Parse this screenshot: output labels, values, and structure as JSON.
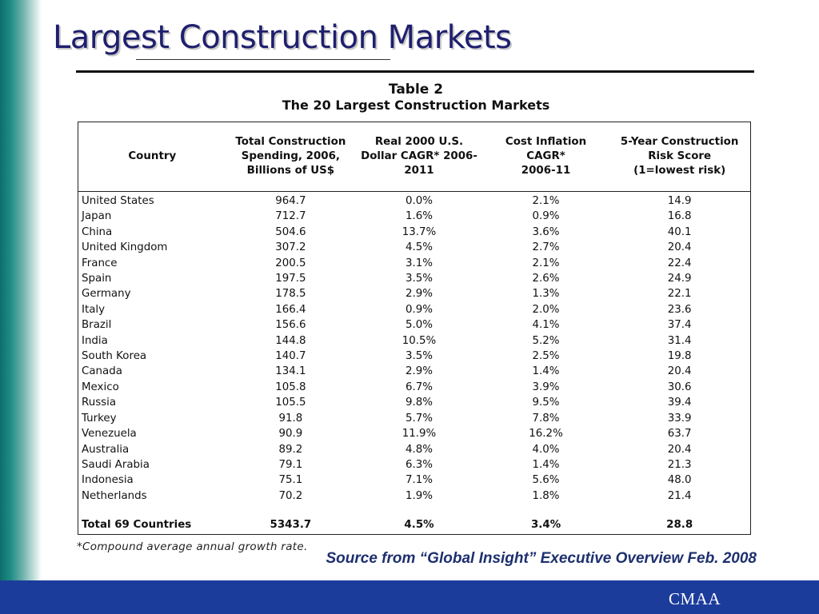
{
  "slide": {
    "title": "Largest Construction Markets"
  },
  "table": {
    "caption_line1": "Table 2",
    "caption_line2": "The 20 Largest Construction Markets",
    "headers": {
      "country": "Country",
      "spending": [
        "Total Construction",
        "Spending, 2006,",
        "Billions of US$"
      ],
      "cagr": [
        "Real 2000 U.S.",
        "Dollar CAGR* 2006-",
        "2011"
      ],
      "inflation": [
        "Cost Inflation",
        "CAGR*",
        "2006-11"
      ],
      "risk": [
        "5-Year Construction",
        "Risk Score",
        "(1=lowest risk)"
      ]
    },
    "rows": [
      {
        "country": "United States",
        "spending": "964.7",
        "cagr": "0.0%",
        "inflation": "2.1%",
        "risk": "14.9"
      },
      {
        "country": "Japan",
        "spending": "712.7",
        "cagr": "1.6%",
        "inflation": "0.9%",
        "risk": "16.8"
      },
      {
        "country": "China",
        "spending": "504.6",
        "cagr": "13.7%",
        "inflation": "3.6%",
        "risk": "40.1"
      },
      {
        "country": "United Kingdom",
        "spending": "307.2",
        "cagr": "4.5%",
        "inflation": "2.7%",
        "risk": "20.4"
      },
      {
        "country": "France",
        "spending": "200.5",
        "cagr": "3.1%",
        "inflation": "2.1%",
        "risk": "22.4"
      },
      {
        "country": "Spain",
        "spending": "197.5",
        "cagr": "3.5%",
        "inflation": "2.6%",
        "risk": "24.9"
      },
      {
        "country": "Germany",
        "spending": "178.5",
        "cagr": "2.9%",
        "inflation": "1.3%",
        "risk": "22.1"
      },
      {
        "country": "Italy",
        "spending": "166.4",
        "cagr": "0.9%",
        "inflation": "2.0%",
        "risk": "23.6"
      },
      {
        "country": "Brazil",
        "spending": "156.6",
        "cagr": "5.0%",
        "inflation": "4.1%",
        "risk": "37.4"
      },
      {
        "country": "India",
        "spending": "144.8",
        "cagr": "10.5%",
        "inflation": "5.2%",
        "risk": "31.4"
      },
      {
        "country": "South Korea",
        "spending": "140.7",
        "cagr": "3.5%",
        "inflation": "2.5%",
        "risk": "19.8"
      },
      {
        "country": "Canada",
        "spending": "134.1",
        "cagr": "2.9%",
        "inflation": "1.4%",
        "risk": "20.4"
      },
      {
        "country": "Mexico",
        "spending": "105.8",
        "cagr": "6.7%",
        "inflation": "3.9%",
        "risk": "30.6"
      },
      {
        "country": "Russia",
        "spending": "105.5",
        "cagr": "9.8%",
        "inflation": "9.5%",
        "risk": "39.4"
      },
      {
        "country": "Turkey",
        "spending": "91.8",
        "cagr": "5.7%",
        "inflation": "7.8%",
        "risk": "33.9"
      },
      {
        "country": "Venezuela",
        "spending": "90.9",
        "cagr": "11.9%",
        "inflation": "16.2%",
        "risk": "63.7"
      },
      {
        "country": "Australia",
        "spending": "89.2",
        "cagr": "4.8%",
        "inflation": "4.0%",
        "risk": "20.4"
      },
      {
        "country": "Saudi Arabia",
        "spending": "79.1",
        "cagr": "6.3%",
        "inflation": "1.4%",
        "risk": "21.3"
      },
      {
        "country": "Indonesia",
        "spending": "75.1",
        "cagr": "7.1%",
        "inflation": "5.6%",
        "risk": "48.0"
      },
      {
        "country": "Netherlands",
        "spending": "70.2",
        "cagr": "1.9%",
        "inflation": "1.8%",
        "risk": "21.4"
      }
    ],
    "total": {
      "country": "Total 69 Countries",
      "spending": "5343.7",
      "cagr": "4.5%",
      "inflation": "3.4%",
      "risk": "28.8"
    },
    "footnote": "*Compound average annual growth rate."
  },
  "source_note": "Source from “Global Insight” Executive Overview Feb. 2008",
  "footer": {
    "logo_text": "CMAA"
  },
  "colors": {
    "title": "#1f1f6e",
    "footer_bar": "#1c3c9c",
    "left_bar": "#0e6f6b",
    "source_note": "#1d2f6e"
  }
}
